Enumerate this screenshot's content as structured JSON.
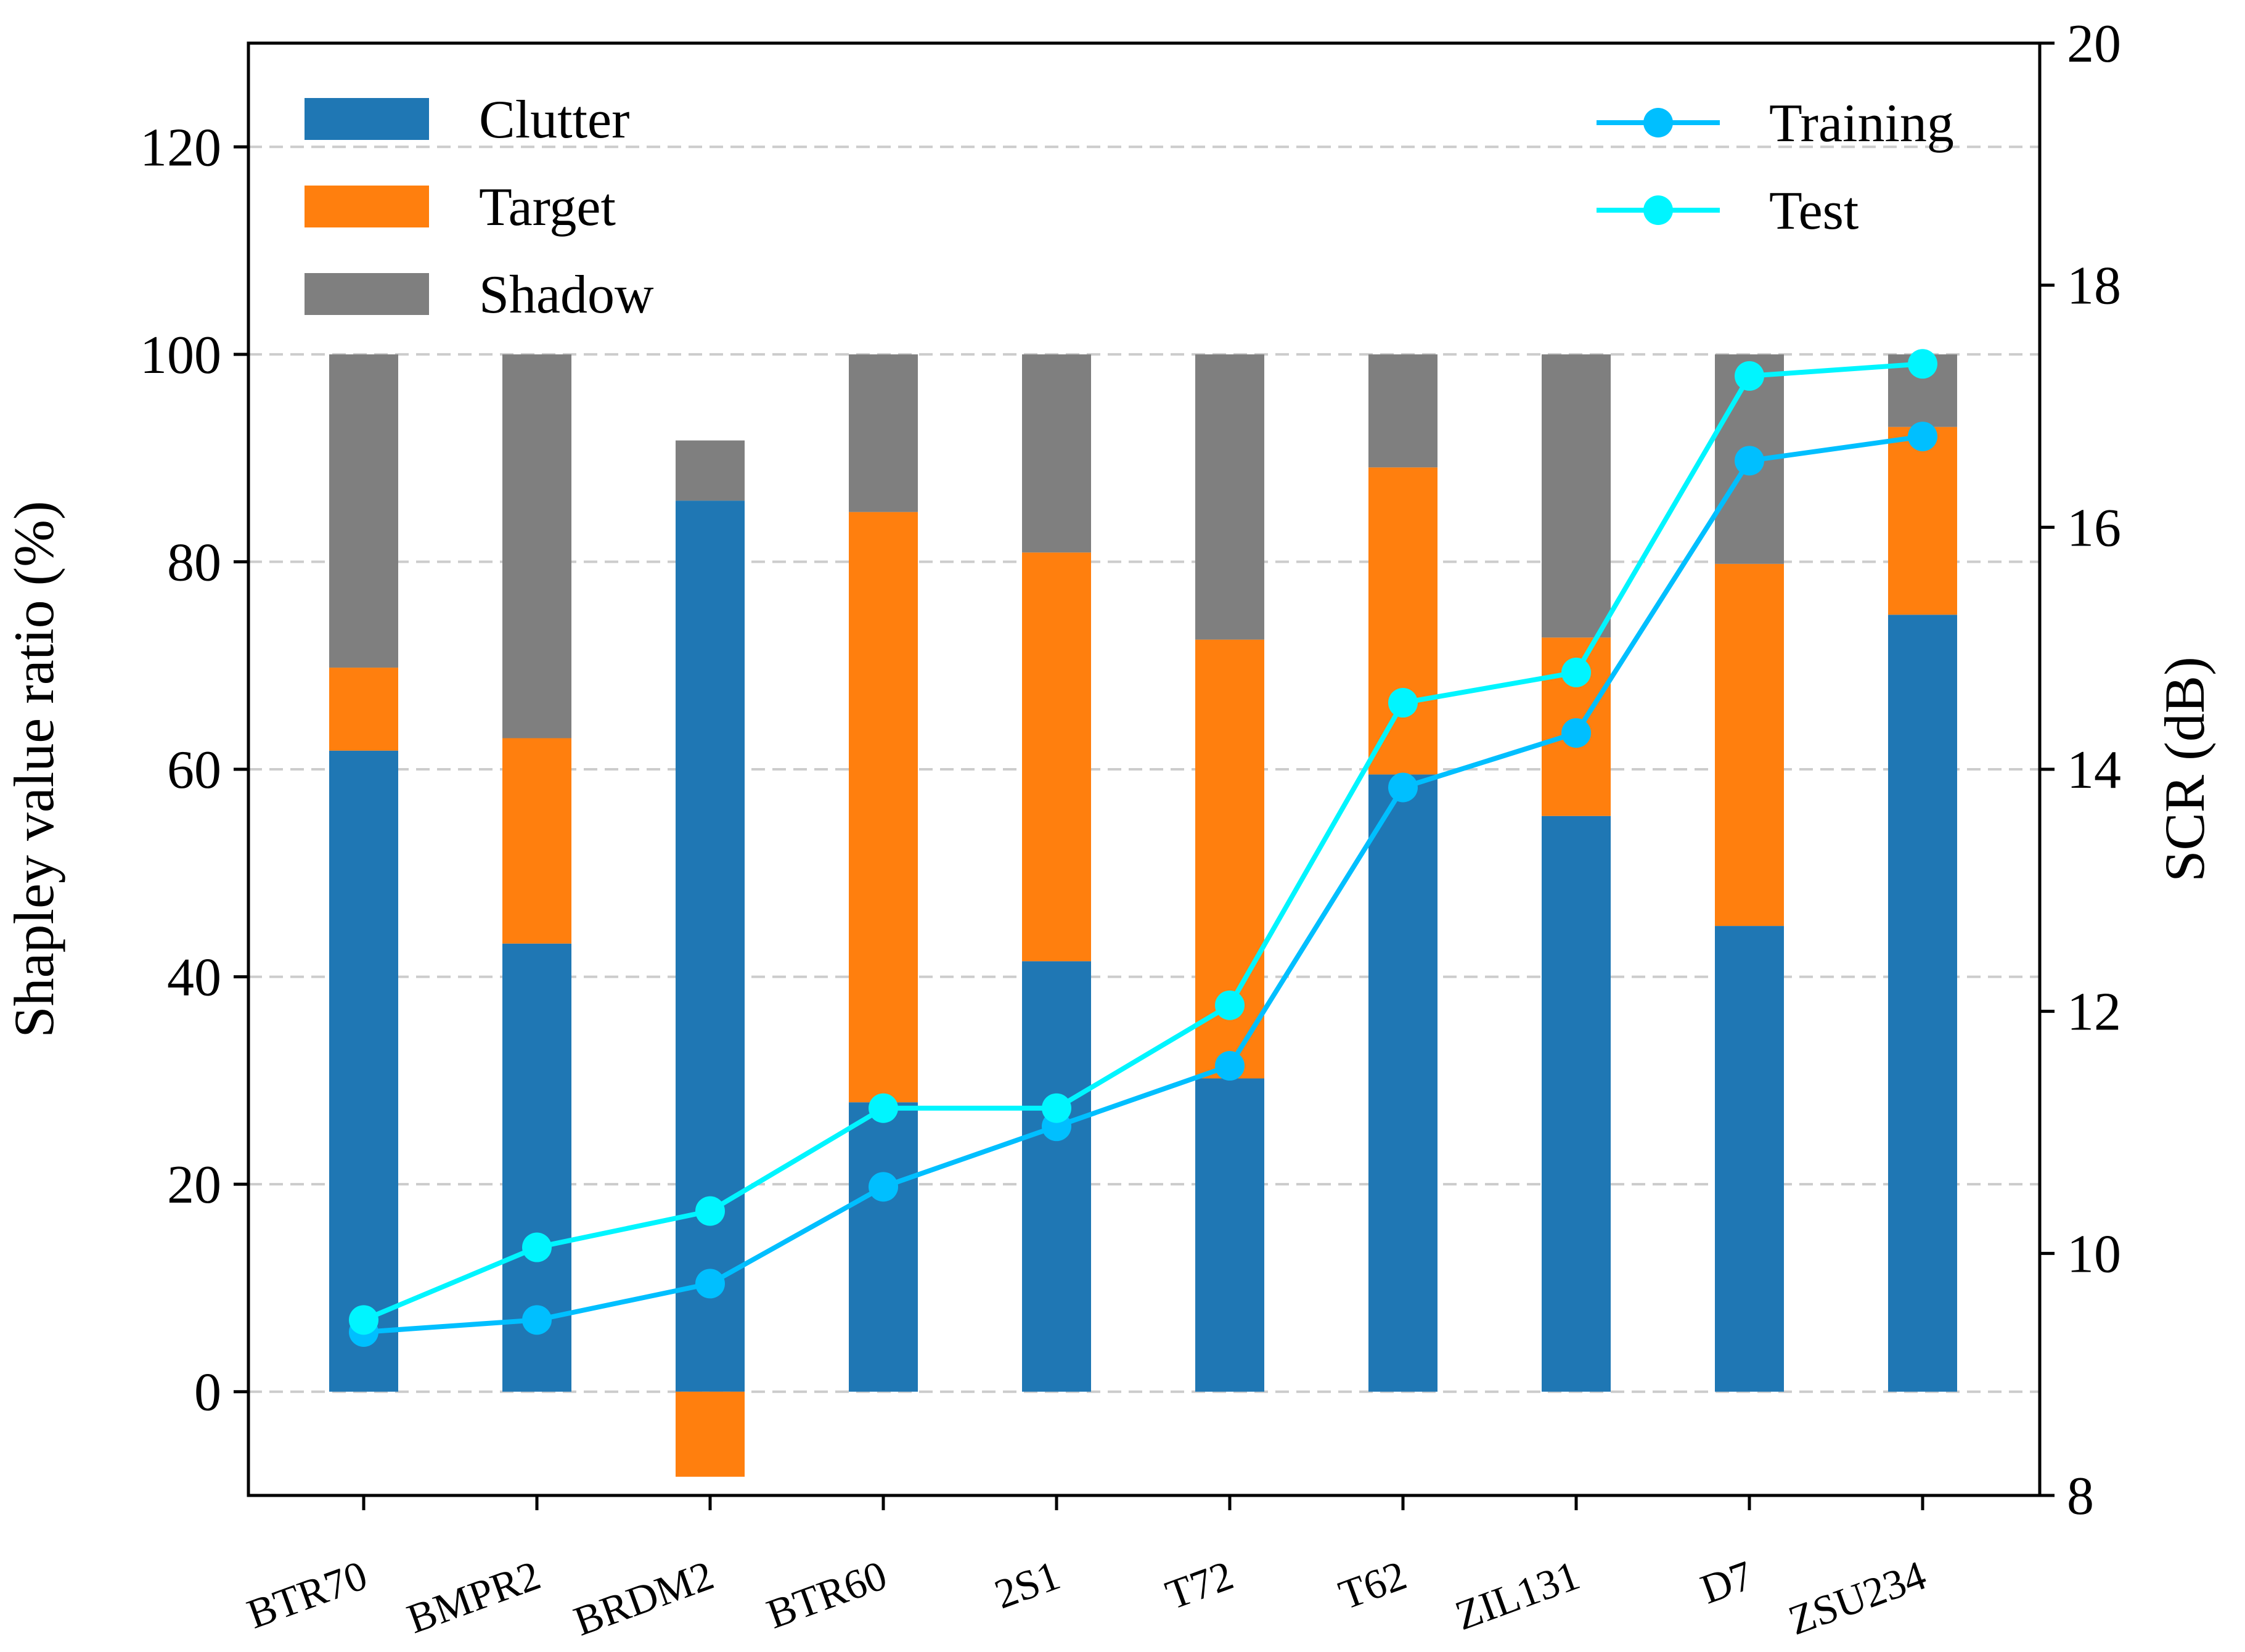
{
  "chart_data": {
    "type": "bar",
    "stacked": true,
    "categories": [
      "BTR70",
      "BMPR2",
      "BRDM2",
      "BTR60",
      "2S1",
      "T72",
      "T62",
      "ZIL131",
      "D7",
      "ZSU234"
    ],
    "series": [
      {
        "name": "Clutter",
        "color": "#1f77b4",
        "values": [
          61.8,
          43.2,
          85.9,
          27.9,
          41.5,
          30.2,
          59.5,
          55.5,
          44.9,
          74.9
        ]
      },
      {
        "name": "Target",
        "color": "#ff7f0e",
        "values": [
          8.0,
          19.8,
          -8.2,
          56.9,
          39.4,
          42.3,
          29.6,
          17.2,
          34.9,
          18.1
        ]
      },
      {
        "name": "Shadow",
        "color": "#7f7f7f",
        "values": [
          30.2,
          37.0,
          5.8,
          15.2,
          19.1,
          27.5,
          10.9,
          27.3,
          20.2,
          7.0
        ]
      }
    ],
    "line_series": [
      {
        "name": "Training",
        "color": "#00bfff",
        "values": [
          9.35,
          9.45,
          9.75,
          10.55,
          11.05,
          11.55,
          13.85,
          14.3,
          16.55,
          16.75
        ]
      },
      {
        "name": "Test",
        "color": "#00f5ff",
        "values": [
          9.45,
          10.05,
          10.35,
          11.2,
          11.2,
          12.05,
          14.55,
          14.8,
          17.25,
          17.35
        ]
      }
    ],
    "ylabel": "Shapley value ratio (%)",
    "y2label": "SCR (dB)",
    "ylim": [
      -10,
      130
    ],
    "y2lim": [
      8,
      20
    ],
    "yticks": [
      0,
      20,
      40,
      60,
      80,
      100,
      120
    ],
    "y2ticks": [
      8,
      10,
      12,
      14,
      16,
      18,
      20
    ],
    "grid": "horizontal dashed",
    "legend_bars": "upper-left",
    "legend_lines": "upper-right"
  }
}
